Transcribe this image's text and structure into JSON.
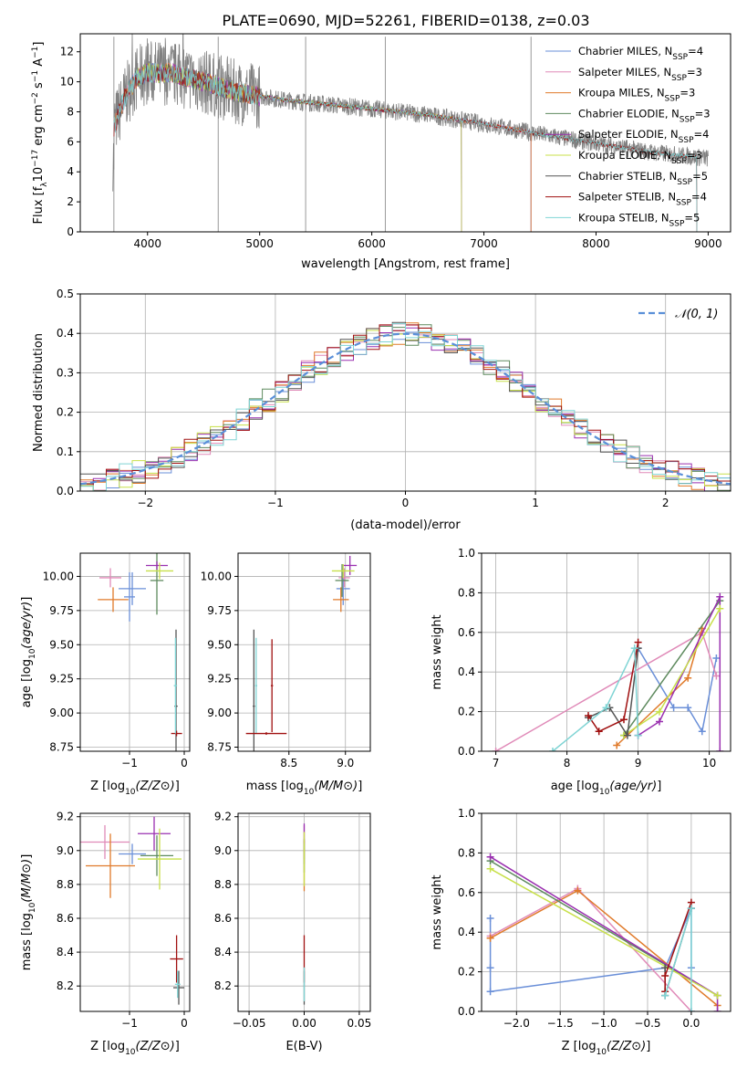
{
  "title": "PLATE=0690, MJD=52261, FIBERID=0138, z=0.03",
  "colors": {
    "Chabrier MILES": "#6a8fd8",
    "Salpeter MILES": "#e08ab8",
    "Kroupa MILES": "#e07a2a",
    "Chabrier ELODIE": "#5e8a5e",
    "Salpeter ELODIE": "#9a30b0",
    "Kroupa ELODIE": "#c8e04a",
    "Chabrier STELIB": "#555555",
    "Salpeter STELIB": "#a01010",
    "Kroupa STELIB": "#7fd4d4",
    "spectrum": "#808080",
    "normal": "#5a8fd8"
  },
  "chart_data": [
    {
      "id": "spectrum",
      "type": "line",
      "xlabel": "wavelength [Angstrom, rest frame]",
      "ylabel": "Flux [f_λ 10^-17 erg cm^-2 s^-1 A^-1]",
      "xlim": [
        3400,
        9200
      ],
      "ylim": [
        0,
        13.2
      ],
      "xticks": [
        4000,
        5000,
        6000,
        7000,
        8000,
        9000
      ],
      "yticks": [
        0,
        2,
        4,
        6,
        8,
        10,
        12
      ],
      "grid": false,
      "legend_position": "top-right",
      "legend": [
        {
          "base": "Chabrier MILES, N",
          "sub": "SSP",
          "tail": "=4"
        },
        {
          "base": "Salpeter MILES, N",
          "sub": "SSP",
          "tail": "=3"
        },
        {
          "base": "Kroupa MILES, N",
          "sub": "SSP",
          "tail": "=3"
        },
        {
          "base": "Chabrier ELODIE, N",
          "sub": "SSP",
          "tail": "=3"
        },
        {
          "base": "Salpeter ELODIE, N",
          "sub": "SSP",
          "tail": "=4"
        },
        {
          "base": "Kroupa ELODIE, N",
          "sub": "SSP",
          "tail": "=3"
        },
        {
          "base": "Chabrier STELIB, N",
          "sub": "SSP",
          "tail": "=5"
        },
        {
          "base": "Salpeter STELIB, N",
          "sub": "SSP",
          "tail": "=4"
        },
        {
          "base": "Kroupa STELIB, N",
          "sub": "SSP",
          "tail": "=5"
        }
      ],
      "observed_envelope": [
        [
          3700,
          7.0
        ],
        [
          3800,
          9.0
        ],
        [
          3900,
          10.2
        ],
        [
          4000,
          10.6
        ],
        [
          4200,
          10.6
        ],
        [
          4500,
          10.0
        ],
        [
          4800,
          9.3
        ],
        [
          5200,
          8.8
        ],
        [
          5600,
          8.5
        ],
        [
          6000,
          8.2
        ],
        [
          6500,
          7.8
        ],
        [
          7000,
          7.2
        ],
        [
          7500,
          6.5
        ],
        [
          8000,
          5.9
        ],
        [
          8500,
          5.3
        ],
        [
          9000,
          4.9
        ]
      ],
      "model_ranges": {
        "MILES": [
          3700,
          7420
        ],
        "ELODIE": [
          3900,
          6800
        ],
        "STELIB": [
          3700,
          8900
        ]
      }
    },
    {
      "id": "residuals",
      "type": "histogram",
      "xlabel": "(data-model)/error",
      "ylabel": "Normed distribution",
      "xlim": [
        -2.5,
        2.5
      ],
      "ylim": [
        0,
        0.5
      ],
      "xticks": [
        -2,
        -1,
        0,
        1,
        2
      ],
      "yticks": [
        0.0,
        0.1,
        0.2,
        0.3,
        0.4,
        0.5
      ],
      "grid": true,
      "legend_position": "top-right",
      "legend": "N(0,1)",
      "reference": "normal(0,1)",
      "bin_width": 0.1
    },
    {
      "id": "age_vs_Z",
      "type": "errorbar",
      "xlabel": "Z [log10(Z/Z⊙)]",
      "ylabel": "age [log10(age/yr)]",
      "xlim": [
        -1.9,
        0.1
      ],
      "ylim": [
        8.72,
        10.17
      ],
      "xticks": [
        -1,
        0
      ],
      "yticks": [
        8.75,
        9.0,
        9.25,
        9.5,
        9.75,
        10.0
      ],
      "grid": true,
      "points": [
        {
          "model": "Chabrier MILES",
          "x": -0.95,
          "y": 9.91,
          "xerr": 0.25,
          "yerr": 0.12
        },
        {
          "model": "Salpeter MILES",
          "x": -1.35,
          "y": 9.99,
          "xerr": 0.2,
          "yerr": 0.07
        },
        {
          "model": "Kroupa MILES",
          "x": -1.3,
          "y": 9.83,
          "xerr": 0.28,
          "yerr": 0.09
        },
        {
          "model": "Chabrier ELODIE",
          "x": -0.5,
          "y": 9.97,
          "xerr": 0.12,
          "yerr": 0.25
        },
        {
          "model": "Salpeter ELODIE",
          "x": -0.5,
          "y": 10.08,
          "xerr": 0.2,
          "yerr": 0.03
        },
        {
          "model": "Kroupa ELODIE",
          "x": -0.45,
          "y": 10.04,
          "xerr": 0.25,
          "yerr": 0.06
        },
        {
          "model": "Chabrier STELIB",
          "x": -0.15,
          "y": 9.05,
          "xerr": 0.03,
          "yerr": 0.56
        },
        {
          "model": "Salpeter STELIB",
          "x": -0.14,
          "y": 8.85,
          "xerr": 0.1,
          "yerr": 0.02
        },
        {
          "model": "Kroupa STELIB",
          "x": -0.16,
          "y": 9.2,
          "xerr": 0.03,
          "yerr": 0.35
        },
        {
          "model": "Chabrier MILES",
          "x": -1.0,
          "y": 9.85,
          "xerr": 0.1,
          "yerr": 0.18
        }
      ]
    },
    {
      "id": "age_vs_mass",
      "type": "errorbar",
      "xlabel": "mass [log10(M/M⊙)]",
      "ylabel": "",
      "xlim": [
        8.05,
        9.22
      ],
      "ylim": [
        8.72,
        10.17
      ],
      "xticks": [
        8.5,
        9.0
      ],
      "yticks": [
        8.75,
        9.0,
        9.25,
        9.5,
        9.75,
        10.0
      ],
      "grid": true,
      "points": [
        {
          "model": "Chabrier MILES",
          "x": 8.98,
          "y": 9.91,
          "xerr": 0.06,
          "yerr": 0.12
        },
        {
          "model": "Salpeter MILES",
          "x": 8.99,
          "y": 9.99,
          "xerr": 0.05,
          "yerr": 0.07
        },
        {
          "model": "Kroupa MILES",
          "x": 8.96,
          "y": 9.83,
          "xerr": 0.07,
          "yerr": 0.09
        },
        {
          "model": "Chabrier ELODIE",
          "x": 8.97,
          "y": 9.97,
          "xerr": 0.06,
          "yerr": 0.12
        },
        {
          "model": "Salpeter ELODIE",
          "x": 9.04,
          "y": 10.08,
          "xerr": 0.06,
          "yerr": 0.07
        },
        {
          "model": "Kroupa ELODIE",
          "x": 8.98,
          "y": 10.04,
          "xerr": 0.1,
          "yerr": 0.05
        },
        {
          "model": "Chabrier STELIB",
          "x": 8.19,
          "y": 9.05,
          "xerr": 0.01,
          "yerr": 0.56
        },
        {
          "model": "Salpeter STELIB",
          "x": 8.35,
          "y": 9.2,
          "xerr": 0.01,
          "yerr": 0.34
        },
        {
          "model": "Kroupa STELIB",
          "x": 8.21,
          "y": 9.2,
          "xerr": 0.01,
          "yerr": 0.35
        },
        {
          "model": "Salpeter STELIB",
          "x": 8.3,
          "y": 8.85,
          "xerr": 0.18,
          "yerr": 0.01
        }
      ]
    },
    {
      "id": "weights_vs_age",
      "type": "line",
      "xlabel": "age [log10(age/yr)]",
      "ylabel": "mass weight",
      "xlim": [
        6.8,
        10.3
      ],
      "ylim": [
        0,
        1.0
      ],
      "xticks": [
        7,
        8,
        9,
        10
      ],
      "yticks": [
        0.0,
        0.2,
        0.4,
        0.6,
        0.8,
        1.0
      ],
      "grid": true,
      "series": [
        {
          "model": "Chabrier MILES",
          "x": [
            9.0,
            9.5,
            9.7,
            9.9,
            10.1
          ],
          "y": [
            0.52,
            0.22,
            0.22,
            0.1,
            0.47
          ]
        },
        {
          "model": "Salpeter MILES",
          "x": [
            7.0,
            9.9,
            10.1
          ],
          "y": [
            0.0,
            0.6,
            0.38
          ]
        },
        {
          "model": "Kroupa MILES",
          "x": [
            8.7,
            9.7,
            9.9
          ],
          "y": [
            0.03,
            0.37,
            0.62
          ]
        },
        {
          "model": "Chabrier ELODIE",
          "x": [
            8.8,
            10.15
          ],
          "y": [
            0.08,
            0.76
          ]
        },
        {
          "model": "Salpeter ELODIE",
          "x": [
            9.0,
            9.3,
            10.15,
            10.15
          ],
          "y": [
            0.08,
            0.15,
            0.78,
            0.0
          ]
        },
        {
          "model": "Kroupa ELODIE",
          "x": [
            8.8,
            9.3,
            10.15
          ],
          "y": [
            0.08,
            0.2,
            0.72
          ]
        },
        {
          "model": "Chabrier STELIB",
          "x": [
            8.3,
            8.6,
            8.85,
            9.0
          ],
          "y": [
            0.17,
            0.22,
            0.08,
            0.52
          ]
        },
        {
          "model": "Salpeter STELIB",
          "x": [
            8.3,
            8.45,
            8.8,
            9.0
          ],
          "y": [
            0.18,
            0.1,
            0.16,
            0.55
          ]
        },
        {
          "model": "Kroupa STELIB",
          "x": [
            7.8,
            8.55,
            8.95,
            9.0
          ],
          "y": [
            0.0,
            0.22,
            0.52,
            0.08
          ]
        }
      ]
    },
    {
      "id": "mass_vs_Z",
      "type": "errorbar",
      "xlabel": "Z [log10(Z/Z⊙)]",
      "ylabel": "mass [log10(M/M⊙)]",
      "xlim": [
        -1.9,
        0.1
      ],
      "ylim": [
        8.05,
        9.22
      ],
      "xticks": [
        -1,
        0
      ],
      "yticks": [
        8.2,
        8.4,
        8.6,
        8.8,
        9.0,
        9.2
      ],
      "grid": true,
      "points": [
        {
          "model": "Chabrier MILES",
          "x": -0.95,
          "y": 8.98,
          "xerr": 0.25,
          "yerr": 0.06
        },
        {
          "model": "Salpeter MILES",
          "x": -1.45,
          "y": 9.05,
          "xerr": 0.45,
          "yerr": 0.1
        },
        {
          "model": "Kroupa MILES",
          "x": -1.35,
          "y": 8.91,
          "xerr": 0.45,
          "yerr": 0.19
        },
        {
          "model": "Chabrier ELODIE",
          "x": -0.5,
          "y": 8.97,
          "xerr": 0.3,
          "yerr": 0.12
        },
        {
          "model": "Salpeter ELODIE",
          "x": -0.55,
          "y": 9.1,
          "xerr": 0.3,
          "yerr": 0.1
        },
        {
          "model": "Kroupa ELODIE",
          "x": -0.45,
          "y": 8.95,
          "xerr": 0.4,
          "yerr": 0.18
        },
        {
          "model": "Chabrier STELIB",
          "x": -0.1,
          "y": 8.19,
          "xerr": 0.1,
          "yerr": 0.1
        },
        {
          "model": "Salpeter STELIB",
          "x": -0.14,
          "y": 8.36,
          "xerr": 0.12,
          "yerr": 0.14
        },
        {
          "model": "Kroupa STELIB",
          "x": -0.12,
          "y": 8.21,
          "xerr": 0.05,
          "yerr": 0.08
        }
      ]
    },
    {
      "id": "mass_vs_EBV",
      "type": "errorbar",
      "xlabel": "E(B-V)",
      "ylabel": "",
      "xlim": [
        -0.06,
        0.06
      ],
      "ylim": [
        8.05,
        9.22
      ],
      "xticks": [
        -0.05,
        0.0,
        0.05
      ],
      "yticks": [
        8.2,
        8.4,
        8.6,
        8.8,
        9.0,
        9.2
      ],
      "grid": true,
      "points": [
        {
          "model": "Chabrier MILES",
          "x": 0.0,
          "y": 8.98,
          "xerr": 0.0,
          "yerr": 0.06
        },
        {
          "model": "Salpeter MILES",
          "x": 0.0,
          "y": 9.05,
          "xerr": 0.0,
          "yerr": 0.1
        },
        {
          "model": "Kroupa MILES",
          "x": 0.0,
          "y": 8.91,
          "xerr": 0.0,
          "yerr": 0.15
        },
        {
          "model": "Chabrier ELODIE",
          "x": 0.0,
          "y": 8.97,
          "xerr": 0.0,
          "yerr": 0.1
        },
        {
          "model": "Salpeter ELODIE",
          "x": 0.0,
          "y": 9.1,
          "xerr": 0.0,
          "yerr": 0.06
        },
        {
          "model": "Kroupa ELODIE",
          "x": 0.0,
          "y": 8.95,
          "xerr": 0.0,
          "yerr": 0.16
        },
        {
          "model": "Chabrier STELIB",
          "x": 0.0,
          "y": 8.19,
          "xerr": 0.0,
          "yerr": 0.1
        },
        {
          "model": "Salpeter STELIB",
          "x": 0.0,
          "y": 8.36,
          "xerr": 0.0,
          "yerr": 0.14
        },
        {
          "model": "Kroupa STELIB",
          "x": 0.0,
          "y": 8.21,
          "xerr": 0.0,
          "yerr": 0.1
        }
      ]
    },
    {
      "id": "weights_vs_Z",
      "type": "line",
      "xlabel": "Z [log10(Z/Z⊙)]",
      "ylabel": "mass weight",
      "xlim": [
        -2.4,
        0.45
      ],
      "ylim": [
        0,
        1.0
      ],
      "xticks": [
        -2.0,
        -1.5,
        -1.0,
        -0.5,
        0.0
      ],
      "yticks": [
        0.0,
        0.2,
        0.4,
        0.6,
        0.8,
        1.0
      ],
      "grid": true,
      "series": [
        {
          "model": "Chabrier MILES",
          "x": [
            -2.3,
            -2.3,
            -2.3,
            -0.3,
            0.0,
            0.0
          ],
          "y": [
            0.47,
            0.22,
            0.1,
            0.22,
            0.52,
            0.22
          ]
        },
        {
          "model": "Salpeter MILES",
          "x": [
            -2.3,
            -1.3,
            0.0
          ],
          "y": [
            0.38,
            0.62,
            0.0
          ]
        },
        {
          "model": "Kroupa MILES",
          "x": [
            -2.3,
            -1.3,
            0.3
          ],
          "y": [
            0.37,
            0.61,
            0.03
          ]
        },
        {
          "model": "Chabrier ELODIE",
          "x": [
            -2.3,
            0.3
          ],
          "y": [
            0.76,
            0.08
          ]
        },
        {
          "model": "Salpeter ELODIE",
          "x": [
            -2.3,
            0.3,
            0.3
          ],
          "y": [
            0.78,
            0.08,
            0.0
          ]
        },
        {
          "model": "Kroupa ELODIE",
          "x": [
            -2.3,
            0.3
          ],
          "y": [
            0.72,
            0.08
          ]
        },
        {
          "model": "Chabrier STELIB",
          "x": [
            -0.3,
            -0.3,
            0.0
          ],
          "y": [
            0.22,
            0.08,
            0.52
          ]
        },
        {
          "model": "Salpeter STELIB",
          "x": [
            -0.3,
            -0.3,
            0.0
          ],
          "y": [
            0.1,
            0.18,
            0.55
          ]
        },
        {
          "model": "Kroupa STELIB",
          "x": [
            -0.3,
            0.0,
            0.0
          ],
          "y": [
            0.08,
            0.52,
            0.0
          ]
        }
      ]
    }
  ]
}
